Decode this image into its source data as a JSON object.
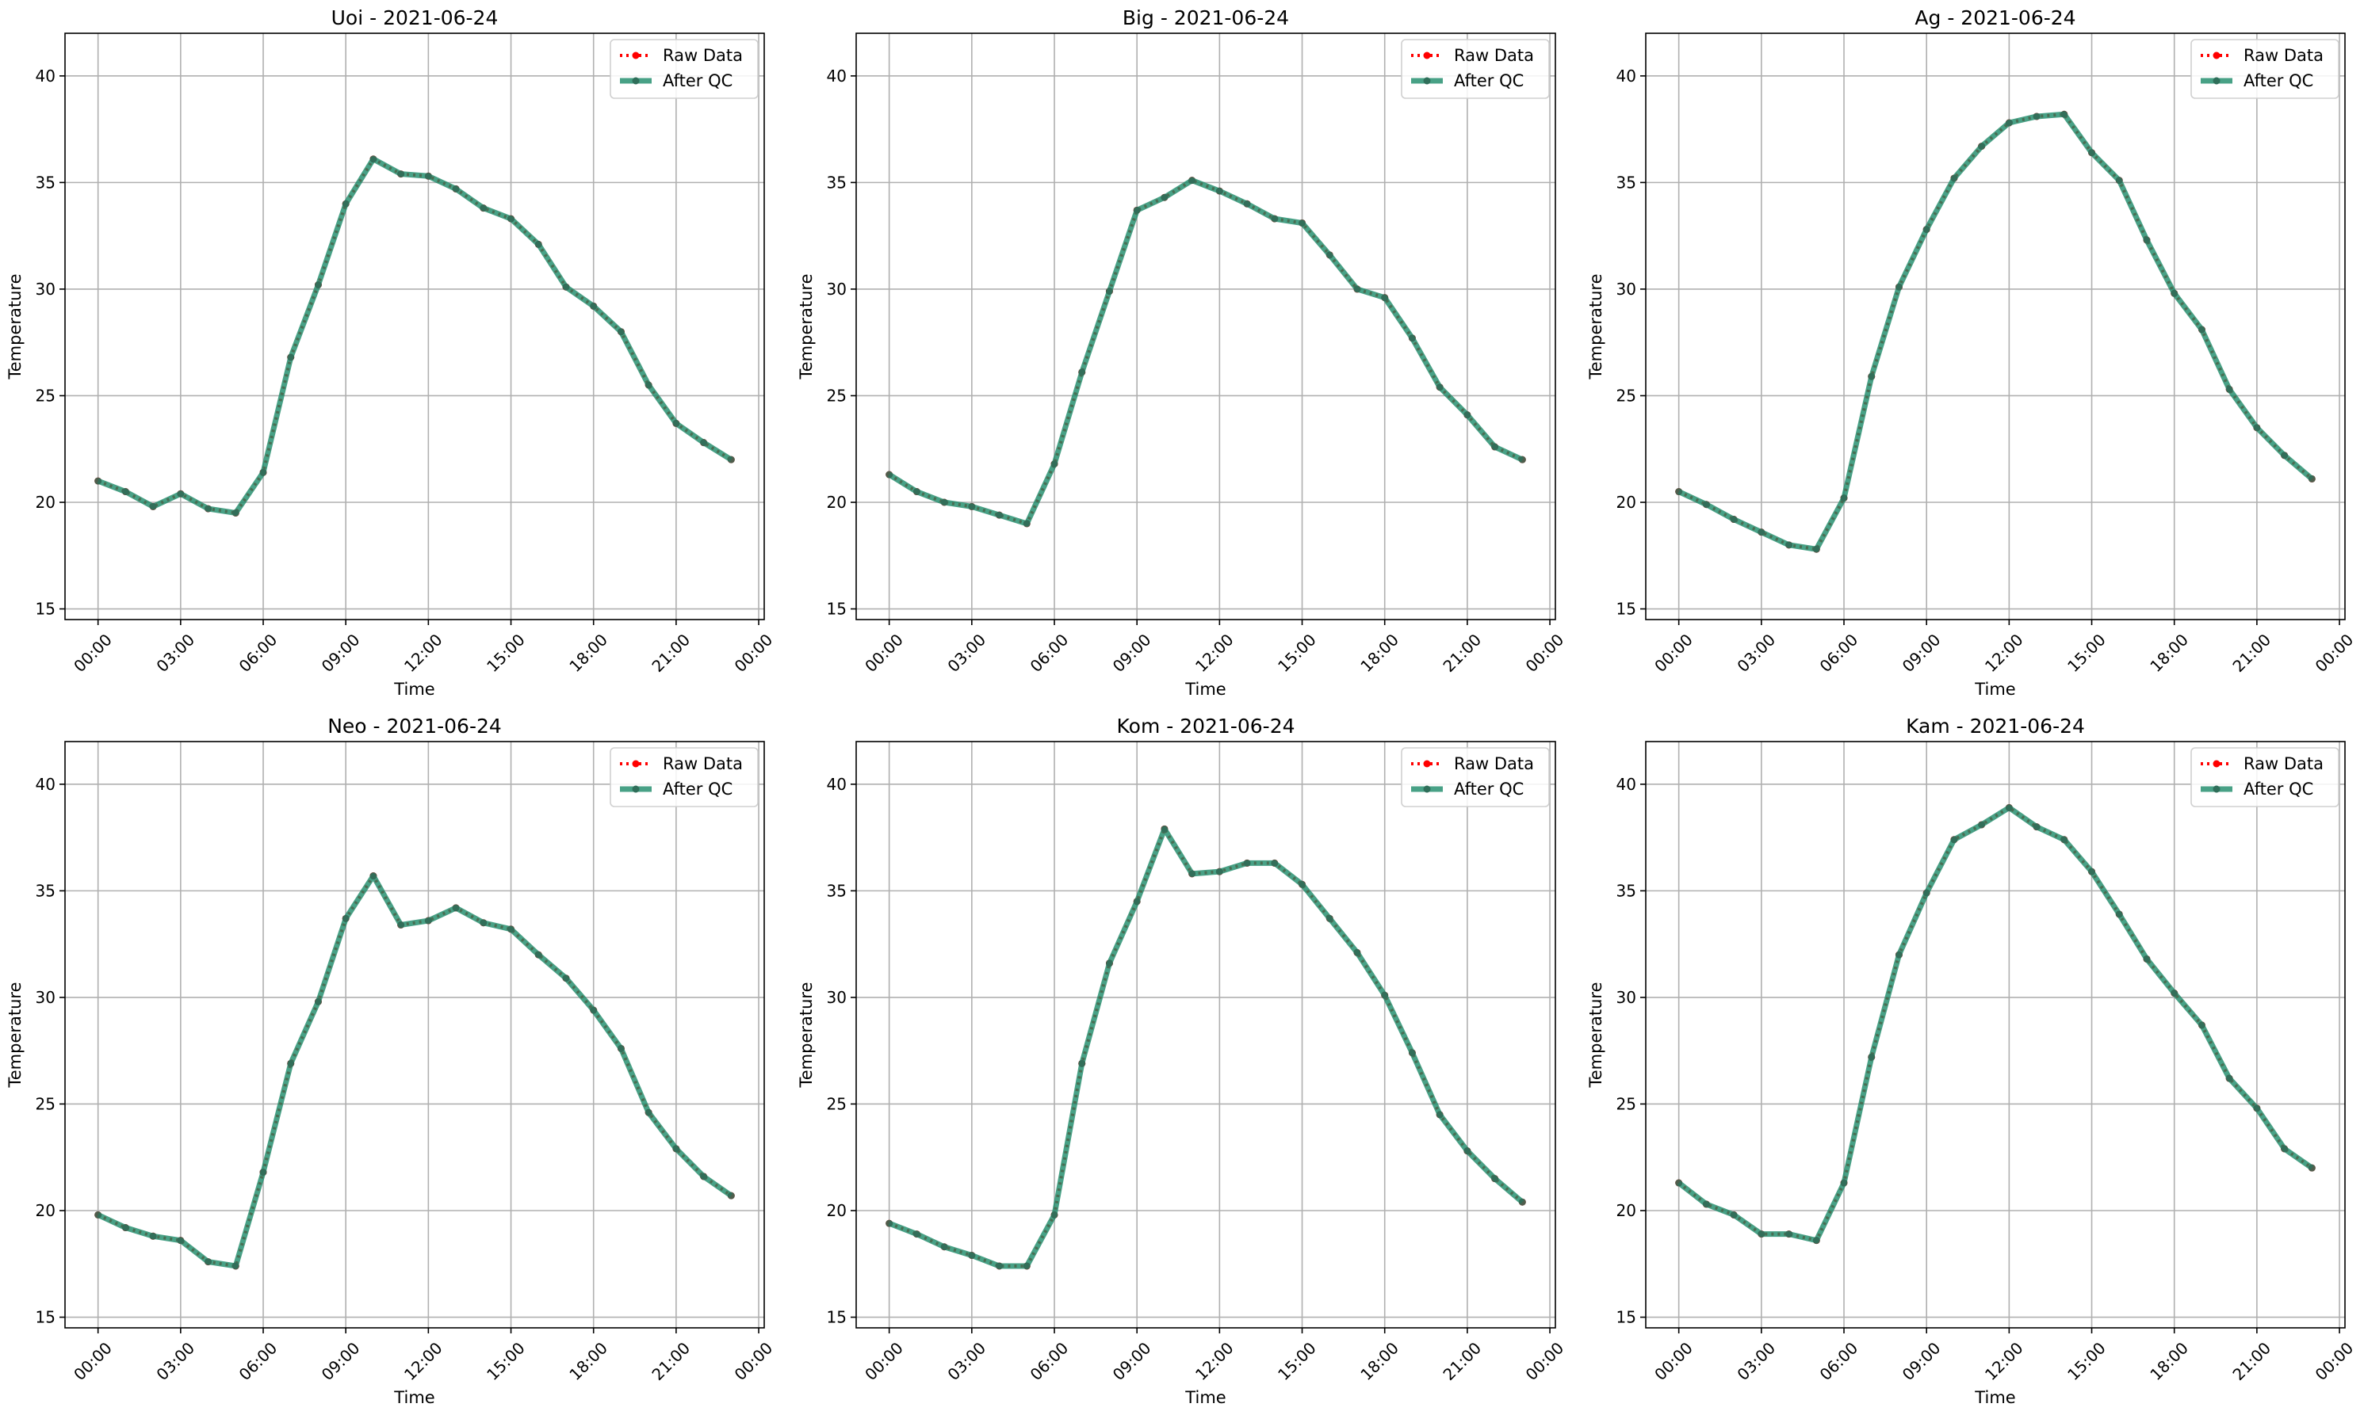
{
  "figure": {
    "background": "#ffffff",
    "grid_color": "#b0b0b0",
    "axes_color": "#000000"
  },
  "chart_data": [
    {
      "type": "line",
      "title": "Uoi - 2021-06-24",
      "xlabel": "Time",
      "ylabel": "Temperature",
      "xlim": [
        -1.2,
        24.2
      ],
      "ylim": [
        14.5,
        42.0
      ],
      "xticks": [
        0,
        3,
        6,
        9,
        12,
        15,
        18,
        21,
        24
      ],
      "xtick_labels": [
        "00:00",
        "03:00",
        "06:00",
        "09:00",
        "12:00",
        "15:00",
        "18:00",
        "21:00",
        "00:00"
      ],
      "yticks": [
        15,
        20,
        25,
        30,
        35,
        40
      ],
      "ytick_labels": [
        "15",
        "20",
        "25",
        "30",
        "35",
        "40"
      ],
      "grid": true,
      "legend": "upper right",
      "x": [
        0,
        1,
        2,
        3,
        4,
        5,
        6,
        7,
        8,
        9,
        10,
        11,
        12,
        13,
        14,
        15,
        16,
        17,
        18,
        19,
        20,
        21,
        22,
        23
      ],
      "series": [
        {
          "name": "Raw Data",
          "color": "#ff0000",
          "style": "dotted",
          "values": [
            21.0,
            20.5,
            19.8,
            20.4,
            19.7,
            19.5,
            21.4,
            26.8,
            30.2,
            34.0,
            36.1,
            35.4,
            35.3,
            34.7,
            33.8,
            33.3,
            32.1,
            30.1,
            29.2,
            28.0,
            25.5,
            23.7,
            22.8,
            22.0
          ]
        },
        {
          "name": "After QC",
          "color": "#1a8a68",
          "style": "solid",
          "values": [
            21.0,
            20.5,
            19.8,
            20.4,
            19.7,
            19.5,
            21.4,
            26.8,
            30.2,
            34.0,
            36.1,
            35.4,
            35.3,
            34.7,
            33.8,
            33.3,
            32.1,
            30.1,
            29.2,
            28.0,
            25.5,
            23.7,
            22.8,
            22.0
          ]
        }
      ]
    },
    {
      "type": "line",
      "title": "Big - 2021-06-24",
      "xlabel": "Time",
      "ylabel": "Temperature",
      "xlim": [
        -1.2,
        24.2
      ],
      "ylim": [
        14.5,
        42.0
      ],
      "xticks": [
        0,
        3,
        6,
        9,
        12,
        15,
        18,
        21,
        24
      ],
      "xtick_labels": [
        "00:00",
        "03:00",
        "06:00",
        "09:00",
        "12:00",
        "15:00",
        "18:00",
        "21:00",
        "00:00"
      ],
      "yticks": [
        15,
        20,
        25,
        30,
        35,
        40
      ],
      "ytick_labels": [
        "15",
        "20",
        "25",
        "30",
        "35",
        "40"
      ],
      "grid": true,
      "legend": "upper right",
      "x": [
        0,
        1,
        2,
        3,
        4,
        5,
        6,
        7,
        8,
        9,
        10,
        11,
        12,
        13,
        14,
        15,
        16,
        17,
        18,
        19,
        20,
        21,
        22,
        23
      ],
      "series": [
        {
          "name": "Raw Data",
          "color": "#ff0000",
          "style": "dotted",
          "values": [
            21.3,
            20.5,
            20.0,
            19.8,
            19.4,
            19.0,
            21.8,
            26.1,
            29.9,
            33.7,
            34.3,
            35.1,
            34.6,
            34.0,
            33.3,
            33.1,
            31.6,
            30.0,
            29.6,
            27.7,
            25.4,
            24.1,
            22.6,
            22.0
          ]
        },
        {
          "name": "After QC",
          "color": "#1a8a68",
          "style": "solid",
          "values": [
            21.3,
            20.5,
            20.0,
            19.8,
            19.4,
            19.0,
            21.8,
            26.1,
            29.9,
            33.7,
            34.3,
            35.1,
            34.6,
            34.0,
            33.3,
            33.1,
            31.6,
            30.0,
            29.6,
            27.7,
            25.4,
            24.1,
            22.6,
            22.0
          ]
        }
      ]
    },
    {
      "type": "line",
      "title": "Ag - 2021-06-24",
      "xlabel": "Time",
      "ylabel": "Temperature",
      "xlim": [
        -1.2,
        24.2
      ],
      "ylim": [
        14.5,
        42.0
      ],
      "xticks": [
        0,
        3,
        6,
        9,
        12,
        15,
        18,
        21,
        24
      ],
      "xtick_labels": [
        "00:00",
        "03:00",
        "06:00",
        "09:00",
        "12:00",
        "15:00",
        "18:00",
        "21:00",
        "00:00"
      ],
      "yticks": [
        15,
        20,
        25,
        30,
        35,
        40
      ],
      "ytick_labels": [
        "15",
        "20",
        "25",
        "30",
        "35",
        "40"
      ],
      "grid": true,
      "legend": "upper right",
      "x": [
        0,
        1,
        2,
        3,
        4,
        5,
        6,
        7,
        8,
        9,
        10,
        11,
        12,
        13,
        14,
        15,
        16,
        17,
        18,
        19,
        20,
        21,
        22,
        23
      ],
      "series": [
        {
          "name": "Raw Data",
          "color": "#ff0000",
          "style": "dotted",
          "values": [
            20.5,
            19.9,
            19.2,
            18.6,
            18.0,
            17.8,
            20.2,
            25.9,
            30.1,
            32.8,
            35.2,
            36.7,
            37.8,
            38.1,
            38.2,
            36.4,
            35.1,
            32.3,
            29.8,
            28.1,
            25.3,
            23.5,
            22.2,
            21.1
          ]
        },
        {
          "name": "After QC",
          "color": "#1a8a68",
          "style": "solid",
          "values": [
            20.5,
            19.9,
            19.2,
            18.6,
            18.0,
            17.8,
            20.2,
            25.9,
            30.1,
            32.8,
            35.2,
            36.7,
            37.8,
            38.1,
            38.2,
            36.4,
            35.1,
            32.3,
            29.8,
            28.1,
            25.3,
            23.5,
            22.2,
            21.1
          ]
        }
      ]
    },
    {
      "type": "line",
      "title": "Neo - 2021-06-24",
      "xlabel": "Time",
      "ylabel": "Temperature",
      "xlim": [
        -1.2,
        24.2
      ],
      "ylim": [
        14.5,
        42.0
      ],
      "xticks": [
        0,
        3,
        6,
        9,
        12,
        15,
        18,
        21,
        24
      ],
      "xtick_labels": [
        "00:00",
        "03:00",
        "06:00",
        "09:00",
        "12:00",
        "15:00",
        "18:00",
        "21:00",
        "00:00"
      ],
      "yticks": [
        15,
        20,
        25,
        30,
        35,
        40
      ],
      "ytick_labels": [
        "15",
        "20",
        "25",
        "30",
        "35",
        "40"
      ],
      "grid": true,
      "legend": "upper right",
      "x": [
        0,
        1,
        2,
        3,
        4,
        5,
        6,
        7,
        8,
        9,
        10,
        11,
        12,
        13,
        14,
        15,
        16,
        17,
        18,
        19,
        20,
        21,
        22,
        23
      ],
      "series": [
        {
          "name": "Raw Data",
          "color": "#ff0000",
          "style": "dotted",
          "values": [
            19.8,
            19.2,
            18.8,
            18.6,
            17.6,
            17.4,
            21.8,
            26.9,
            29.8,
            33.7,
            35.7,
            33.4,
            33.6,
            34.2,
            33.5,
            33.2,
            32.0,
            30.9,
            29.4,
            27.6,
            24.6,
            22.9,
            21.6,
            20.7
          ]
        },
        {
          "name": "After QC",
          "color": "#1a8a68",
          "style": "solid",
          "values": [
            19.8,
            19.2,
            18.8,
            18.6,
            17.6,
            17.4,
            21.8,
            26.9,
            29.8,
            33.7,
            35.7,
            33.4,
            33.6,
            34.2,
            33.5,
            33.2,
            32.0,
            30.9,
            29.4,
            27.6,
            24.6,
            22.9,
            21.6,
            20.7
          ]
        }
      ]
    },
    {
      "type": "line",
      "title": "Kom - 2021-06-24",
      "xlabel": "Time",
      "ylabel": "Temperature",
      "xlim": [
        -1.2,
        24.2
      ],
      "ylim": [
        14.5,
        42.0
      ],
      "xticks": [
        0,
        3,
        6,
        9,
        12,
        15,
        18,
        21,
        24
      ],
      "xtick_labels": [
        "00:00",
        "03:00",
        "06:00",
        "09:00",
        "12:00",
        "15:00",
        "18:00",
        "21:00",
        "00:00"
      ],
      "yticks": [
        15,
        20,
        25,
        30,
        35,
        40
      ],
      "ytick_labels": [
        "15",
        "20",
        "25",
        "30",
        "35",
        "40"
      ],
      "grid": true,
      "legend": "upper right",
      "x": [
        0,
        1,
        2,
        3,
        4,
        5,
        6,
        7,
        8,
        9,
        10,
        11,
        12,
        13,
        14,
        15,
        16,
        17,
        18,
        19,
        20,
        21,
        22,
        23
      ],
      "series": [
        {
          "name": "Raw Data",
          "color": "#ff0000",
          "style": "dotted",
          "values": [
            19.4,
            18.9,
            18.3,
            17.9,
            17.4,
            17.4,
            19.8,
            26.9,
            31.6,
            34.5,
            37.9,
            35.8,
            35.9,
            36.3,
            36.3,
            35.3,
            33.7,
            32.1,
            30.1,
            27.4,
            24.5,
            22.8,
            21.5,
            20.4
          ]
        },
        {
          "name": "After QC",
          "color": "#1a8a68",
          "style": "solid",
          "values": [
            19.4,
            18.9,
            18.3,
            17.9,
            17.4,
            17.4,
            19.8,
            26.9,
            31.6,
            34.5,
            37.9,
            35.8,
            35.9,
            36.3,
            36.3,
            35.3,
            33.7,
            32.1,
            30.1,
            27.4,
            24.5,
            22.8,
            21.5,
            20.4
          ]
        }
      ]
    },
    {
      "type": "line",
      "title": "Kam - 2021-06-24",
      "xlabel": "Time",
      "ylabel": "Temperature",
      "xlim": [
        -1.2,
        24.2
      ],
      "ylim": [
        14.5,
        42.0
      ],
      "xticks": [
        0,
        3,
        6,
        9,
        12,
        15,
        18,
        21,
        24
      ],
      "xtick_labels": [
        "00:00",
        "03:00",
        "06:00",
        "09:00",
        "12:00",
        "15:00",
        "18:00",
        "21:00",
        "00:00"
      ],
      "yticks": [
        15,
        20,
        25,
        30,
        35,
        40
      ],
      "ytick_labels": [
        "15",
        "20",
        "25",
        "30",
        "35",
        "40"
      ],
      "grid": true,
      "legend": "upper right",
      "x": [
        0,
        1,
        2,
        3,
        4,
        5,
        6,
        7,
        8,
        9,
        10,
        11,
        12,
        13,
        14,
        15,
        16,
        17,
        18,
        19,
        20,
        21,
        22,
        23
      ],
      "series": [
        {
          "name": "Raw Data",
          "color": "#ff0000",
          "style": "dotted",
          "values": [
            21.3,
            20.3,
            19.8,
            18.9,
            18.9,
            18.6,
            21.3,
            27.2,
            32.0,
            34.9,
            37.4,
            38.1,
            38.9,
            38.0,
            37.4,
            35.9,
            33.9,
            31.8,
            30.2,
            28.7,
            26.2,
            24.8,
            22.9,
            22.0
          ]
        },
        {
          "name": "After QC",
          "color": "#1a8a68",
          "style": "solid",
          "values": [
            21.3,
            20.3,
            19.8,
            18.9,
            18.9,
            18.6,
            21.3,
            27.2,
            32.0,
            34.9,
            37.4,
            38.1,
            38.9,
            38.0,
            37.4,
            35.9,
            33.9,
            31.8,
            30.2,
            28.7,
            26.2,
            24.8,
            22.9,
            22.0
          ]
        }
      ]
    }
  ]
}
